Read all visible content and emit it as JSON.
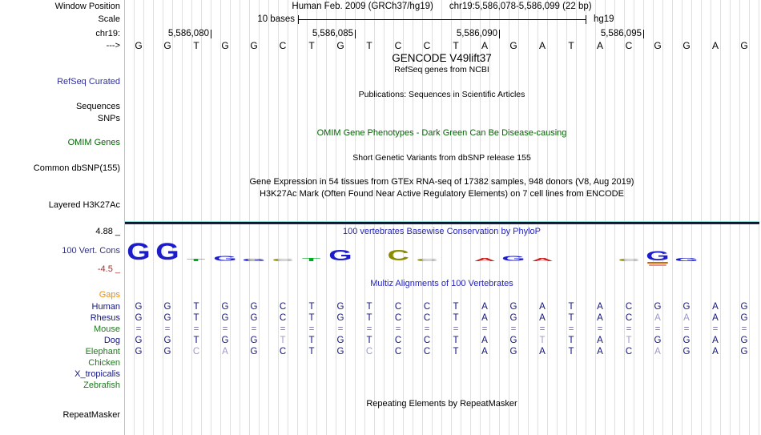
{
  "colors": {
    "black": "#000000",
    "track_blue": "#2F2F9E",
    "dark_green": "#006400",
    "cons_blue": "#34347E",
    "maroon": "#993333",
    "orange": "#F28C00",
    "navy": "#14147F",
    "species_green": "#1E7A1E",
    "title_blue": "#2424B8",
    "faded": "#9A9ACB",
    "equals": "#6E6EB4",
    "grid": "#DCDCF4",
    "pink_line": "#F7AAAA",
    "h3k_teal": "#8ADBD3",
    "h3k_dark": "#0B0B33",
    "h3k_maroon": "#512626",
    "logo_A": "#CC2222",
    "logo_C": "#8B8B00",
    "logo_G": "#1C1CC8",
    "logo_T": "#00AA22",
    "logo_neg1": "#CC6A00",
    "logo_neg2": "#E89090"
  },
  "header": {
    "title_left": "Human Feb. 2009 (GRCh37/hg19)",
    "title_right": "chr19:5,586,078-5,586,099 (22 bp)",
    "scale_text": "10 bases",
    "assembly": "hg19",
    "coordinate_ticks": [
      {
        "label": "5,586,080",
        "base_index": 3
      },
      {
        "label": "5,586,085",
        "base_index": 8
      },
      {
        "label": "5,586,090",
        "base_index": 13
      },
      {
        "label": "5,586,095",
        "base_index": 18
      }
    ],
    "sequence": [
      "G",
      "G",
      "T",
      "G",
      "G",
      "C",
      "T",
      "G",
      "T",
      "C",
      "C",
      "T",
      "A",
      "G",
      "A",
      "T",
      "A",
      "C",
      "G",
      "G",
      "A",
      "G"
    ]
  },
  "left_labels": [
    {
      "id": "window-position",
      "text": "Window Position",
      "color": "black",
      "interactable": false
    },
    {
      "id": "scale",
      "text": "Scale",
      "color": "black",
      "interactable": false
    },
    {
      "id": "chrom",
      "text": "chr19:",
      "color": "black",
      "interactable": false
    },
    {
      "id": "strand",
      "text": "--->",
      "color": "black",
      "interactable": false
    },
    {
      "id": "refseq-curated",
      "text": "RefSeq Curated",
      "color": "track_blue",
      "interactable": true
    },
    {
      "id": "sequences",
      "text": "Sequences",
      "color": "black",
      "interactable": true
    },
    {
      "id": "snps",
      "text": "SNPs",
      "color": "black",
      "interactable": true
    },
    {
      "id": "omim-genes",
      "text": "OMIM Genes",
      "color": "dark_green",
      "interactable": true
    },
    {
      "id": "common-dbsnp",
      "text": "Common dbSNP(155)",
      "color": "black",
      "interactable": true
    },
    {
      "id": "layered-h3k27ac",
      "text": "Layered H3K27Ac",
      "color": "black",
      "interactable": true
    },
    {
      "id": "cons-max",
      "text": "4.88 _",
      "color": "black",
      "interactable": false
    },
    {
      "id": "cons-label",
      "text": "100 Vert. Cons",
      "color": "cons_blue",
      "interactable": true
    },
    {
      "id": "cons-min",
      "text": "-4.5 _",
      "color": "maroon",
      "interactable": false
    },
    {
      "id": "gaps",
      "text": "Gaps",
      "color": "orange",
      "interactable": true
    },
    {
      "id": "species-human",
      "text": "Human",
      "color": "navy",
      "interactable": true
    },
    {
      "id": "species-rhesus",
      "text": "Rhesus",
      "color": "navy",
      "interactable": true
    },
    {
      "id": "species-mouse",
      "text": "Mouse",
      "color": "species_green",
      "interactable": true
    },
    {
      "id": "species-dog",
      "text": "Dog",
      "color": "navy",
      "interactable": true
    },
    {
      "id": "species-elephant",
      "text": "Elephant",
      "color": "species_green",
      "interactable": true
    },
    {
      "id": "species-chicken",
      "text": "Chicken",
      "color": "species_green",
      "interactable": true
    },
    {
      "id": "species-xtropicalis",
      "text": "X_tropicalis",
      "color": "navy",
      "interactable": true
    },
    {
      "id": "species-zebrafish",
      "text": "Zebrafish",
      "color": "species_green",
      "interactable": true
    },
    {
      "id": "repeatmasker",
      "text": "RepeatMasker",
      "color": "black",
      "interactable": true
    }
  ],
  "center_texts": [
    {
      "id": "gencode-title",
      "text": "GENCODE V49lift37",
      "color": "black",
      "interactable": true
    },
    {
      "id": "refseq-note",
      "text": "RefSeq genes from NCBI",
      "color": "black",
      "interactable": false
    },
    {
      "id": "publications-title",
      "text": "Publications: Sequences in Scientific Articles",
      "color": "black",
      "interactable": true
    },
    {
      "id": "omim-title",
      "text": "OMIM Gene Phenotypes - Dark Green Can Be Disease-causing",
      "color": "dark_green",
      "interactable": true
    },
    {
      "id": "dbsnp-note",
      "text": "Short Genetic Variants from dbSNP release 155",
      "color": "black",
      "interactable": false
    },
    {
      "id": "gtex-title",
      "text": "Gene Expression in 54 tissues from GTEx RNA-seq of 17382 samples, 948 donors (V8, Aug 2019)",
      "color": "black",
      "interactable": true
    },
    {
      "id": "h3k27ac-title",
      "text": "H3K27Ac Mark (Often Found Near Active Regulatory Elements) on 7 cell lines from ENCODE",
      "color": "black",
      "interactable": true
    },
    {
      "id": "phylop-title",
      "text": "100 vertebrates Basewise Conservation by PhyloP",
      "color": "title_blue",
      "interactable": true
    },
    {
      "id": "multiz-title",
      "text": "Multiz Alignments of 100 Vertebrates",
      "color": "title_blue",
      "interactable": true
    },
    {
      "id": "repeat-title",
      "text": "Repeating Elements by RepeatMasker",
      "color": "black",
      "interactable": true
    }
  ],
  "conservation_logo": [
    {
      "base": "G",
      "h": 21
    },
    {
      "base": "G",
      "h": 21
    },
    {
      "base": "T",
      "h": 3
    },
    {
      "base": "G",
      "h": 6
    },
    {
      "base": "G",
      "h": 3
    },
    {
      "base": "C",
      "h": 3
    },
    {
      "base": "T",
      "h": 4
    },
    {
      "base": "G",
      "h": 13
    },
    {
      "base": "",
      "h": 0
    },
    {
      "base": "C",
      "h": 13
    },
    {
      "base": "C",
      "h": 3
    },
    {
      "base": "",
      "h": 0
    },
    {
      "base": "A",
      "h": 4
    },
    {
      "base": "G",
      "h": 6
    },
    {
      "base": "A",
      "h": 4
    },
    {
      "base": "",
      "h": 0
    },
    {
      "base": "",
      "h": 0
    },
    {
      "base": "C",
      "h": 3
    },
    {
      "base": "G",
      "h": 12,
      "neg": true
    },
    {
      "base": "G",
      "h": 4
    },
    {
      "base": "",
      "h": 0
    },
    {
      "base": "",
      "h": 0
    }
  ],
  "alignment": {
    "species": [
      {
        "id": "human",
        "bases": [
          "G",
          "G",
          "T",
          "G",
          "G",
          "C",
          "T",
          "G",
          "T",
          "C",
          "C",
          "T",
          "A",
          "G",
          "A",
          "T",
          "A",
          "C",
          "G",
          "G",
          "A",
          "G"
        ],
        "faded": []
      },
      {
        "id": "rhesus",
        "bases": [
          "G",
          "G",
          "T",
          "G",
          "G",
          "C",
          "T",
          "G",
          "T",
          "C",
          "C",
          "T",
          "A",
          "G",
          "A",
          "T",
          "A",
          "C",
          "A",
          "A",
          "A",
          "G"
        ],
        "faded": [
          19,
          20
        ]
      },
      {
        "id": "mouse",
        "bases": [
          "=",
          "=",
          "=",
          "=",
          "=",
          "=",
          "=",
          "=",
          "=",
          "=",
          "=",
          "=",
          "=",
          "=",
          "=",
          "=",
          "=",
          "=",
          "=",
          "=",
          "=",
          "="
        ],
        "faded": []
      },
      {
        "id": "dog",
        "bases": [
          "G",
          "G",
          "T",
          "G",
          "G",
          "T",
          "T",
          "G",
          "T",
          "C",
          "C",
          "T",
          "A",
          "G",
          "T",
          "T",
          "A",
          "T",
          "G",
          "G",
          "A",
          "G"
        ],
        "faded": [
          6,
          15,
          18
        ]
      },
      {
        "id": "elephant",
        "bases": [
          "G",
          "G",
          "C",
          "A",
          "G",
          "C",
          "T",
          "G",
          "C",
          "C",
          "C",
          "T",
          "A",
          "G",
          "A",
          "T",
          "A",
          "C",
          "A",
          "G",
          "A",
          "G"
        ],
        "faded": [
          3,
          4,
          9,
          19
        ]
      },
      {
        "id": "chicken",
        "bases": [],
        "faded": []
      },
      {
        "id": "xtropicalis",
        "bases": [],
        "faded": []
      },
      {
        "id": "zebrafish",
        "bases": [],
        "faded": []
      }
    ]
  }
}
